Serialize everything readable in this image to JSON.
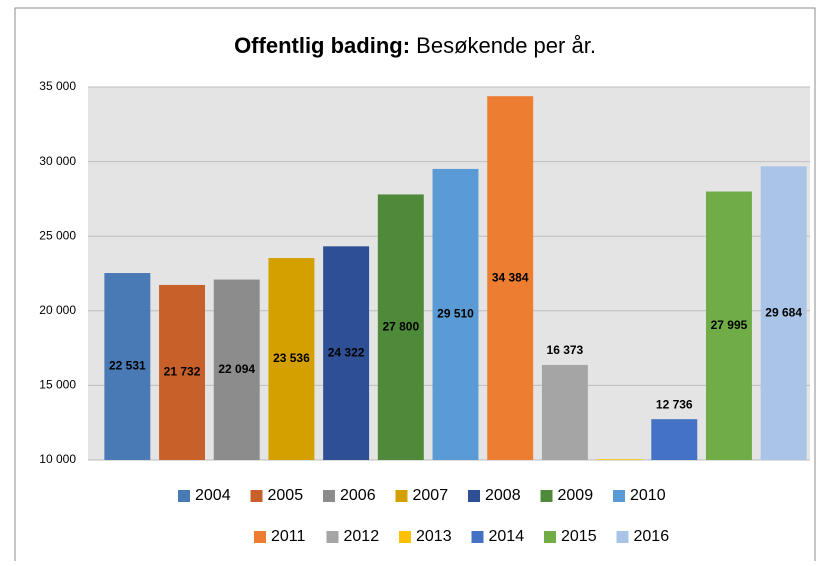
{
  "chart_data": {
    "type": "bar",
    "title": "Offentlig bading:",
    "subtitle": "Besøkende per år.",
    "categories": [
      "2004",
      "2005",
      "2006",
      "2007",
      "2008",
      "2009",
      "2010",
      "2011",
      "2012",
      "2013",
      "2014",
      "2015",
      "2016"
    ],
    "values": [
      22531,
      21732,
      22094,
      23536,
      24322,
      27800,
      29510,
      34384,
      16373,
      10050,
      12736,
      27995,
      29684
    ],
    "value_labels": [
      "22 531",
      "21 732",
      "22 094",
      "23 536",
      "24 322",
      "27 800",
      "29 510",
      "34 384",
      "16 373",
      null,
      "12 736",
      "27 995",
      "29 684"
    ],
    "colors": [
      "#4a7ab5",
      "#c8602a",
      "#8c8c8c",
      "#d4a000",
      "#2f4f95",
      "#4e8a3a",
      "#5b9bd5",
      "#ed7d31",
      "#a5a5a5",
      "#ffc000",
      "#4472c4",
      "#70ad47",
      "#a9c4e6"
    ],
    "ylim": [
      10000,
      35000
    ],
    "yticks": [
      {
        "value": 10000,
        "label": "10 000"
      },
      {
        "value": 15000,
        "label": "15 000"
      },
      {
        "value": 20000,
        "label": "20 000"
      },
      {
        "value": 25000,
        "label": "25 000"
      },
      {
        "value": 30000,
        "label": "30 000"
      },
      {
        "value": 35000,
        "label": "35 000"
      }
    ],
    "grid": true,
    "legend": "bottom"
  }
}
